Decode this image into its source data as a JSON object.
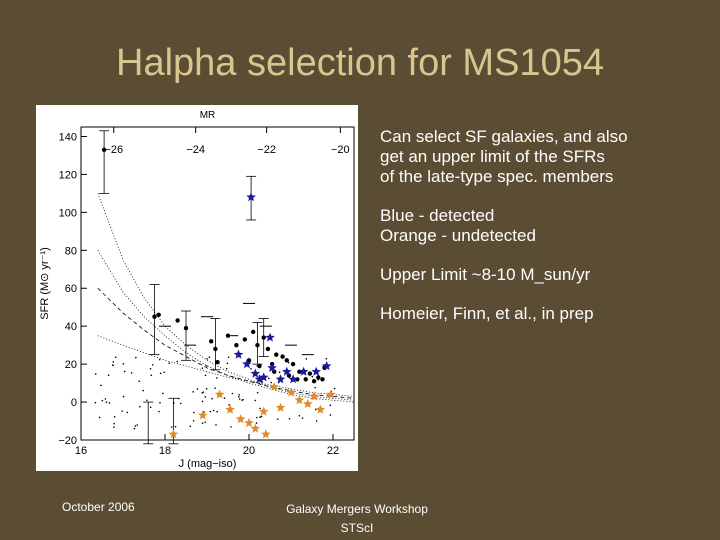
{
  "slide": {
    "title": "Halpha selection for MS1054",
    "bullets": [
      "Can select SF galaxies, and also\nget an upper limit of the SFRs\nof the late-type spec. members",
      "Blue -  detected\nOrange - undetected",
      "Upper Limit ~8-10 M_sun/yr",
      "Homeier, Finn, et al., in prep"
    ],
    "footer_left": "October 2006",
    "footer_center_line1": "Galaxy Mergers Workshop",
    "footer_center_line2": "STScI"
  },
  "colors": {
    "background": "#5b4d33",
    "title": "#d9c58f",
    "detected": "#1a1a9e",
    "undetected": "#e08a2a",
    "other": "#000000"
  },
  "chart_data": {
    "type": "scatter",
    "xlabel": "J (mag−iso)",
    "ylabel": "SFR (M⊙ yr⁻¹)",
    "top_axis_label": "MR",
    "xlim": [
      16,
      22.5
    ],
    "ylim": [
      -20,
      145
    ],
    "x_ticks": [
      "16",
      "18",
      "20",
      "22"
    ],
    "y_ticks": [
      "−20",
      "0",
      "20",
      "40",
      "60",
      "80",
      "100",
      "120",
      "140"
    ],
    "top_ticks": [
      "−26",
      "−24",
      "−22",
      "−20"
    ],
    "series": [
      {
        "marker": "dot",
        "points": [
          [
            16.55,
            133
          ],
          [
            17.75,
            45
          ],
          [
            17.85,
            46
          ],
          [
            18.3,
            43
          ],
          [
            18.5,
            39
          ],
          [
            19.1,
            32
          ],
          [
            19.2,
            28
          ],
          [
            19.25,
            21
          ],
          [
            19.5,
            35
          ],
          [
            19.7,
            30
          ],
          [
            19.9,
            33
          ],
          [
            20.1,
            37
          ],
          [
            20.2,
            30
          ],
          [
            20.35,
            34
          ],
          [
            20.45,
            28
          ],
          [
            20.55,
            20
          ],
          [
            20.65,
            25
          ],
          [
            20.8,
            24
          ],
          [
            20.9,
            22
          ],
          [
            21.05,
            20
          ],
          [
            21.2,
            16
          ],
          [
            21.35,
            12
          ],
          [
            21.45,
            15
          ],
          [
            21.55,
            11
          ],
          [
            21.65,
            13
          ],
          [
            21.75,
            12
          ],
          [
            21.8,
            18
          ],
          [
            20.0,
            22
          ],
          [
            20.25,
            19
          ],
          [
            20.6,
            16
          ],
          [
            20.95,
            14
          ],
          [
            21.15,
            12
          ]
        ]
      },
      {
        "name": "Blue - detected",
        "marker": "star",
        "points": [
          [
            20.05,
            108
          ],
          [
            20.5,
            34
          ],
          [
            19.95,
            20
          ],
          [
            20.15,
            15
          ],
          [
            20.35,
            13
          ],
          [
            20.55,
            18
          ],
          [
            20.75,
            12
          ],
          [
            20.9,
            16
          ],
          [
            21.05,
            12
          ],
          [
            21.3,
            16
          ],
          [
            21.6,
            16
          ],
          [
            21.85,
            19
          ],
          [
            19.75,
            25
          ],
          [
            20.25,
            12
          ]
        ]
      },
      {
        "name": "Orange - undetected",
        "marker": "star",
        "points": [
          [
            18.2,
            -17
          ],
          [
            18.9,
            -7
          ],
          [
            19.3,
            4
          ],
          [
            19.55,
            -4
          ],
          [
            19.8,
            -9
          ],
          [
            20.0,
            -11
          ],
          [
            20.15,
            -14
          ],
          [
            20.35,
            -5
          ],
          [
            20.4,
            -17
          ],
          [
            20.6,
            8
          ],
          [
            20.75,
            -3
          ],
          [
            21.0,
            5
          ],
          [
            21.2,
            1
          ],
          [
            21.4,
            -1
          ],
          [
            21.55,
            3
          ],
          [
            21.7,
            -4
          ],
          [
            21.95,
            4
          ]
        ]
      }
    ],
    "error_bars": [
      [
        16.55,
        133,
        110,
        143
      ],
      [
        17.75,
        45,
        25,
        62
      ],
      [
        18.5,
        39,
        22,
        48
      ],
      [
        19.2,
        28,
        17,
        44
      ],
      [
        20.05,
        108,
        96,
        119
      ],
      [
        20.2,
        30,
        20,
        42
      ],
      [
        20.35,
        34,
        24,
        44
      ],
      [
        17.6,
        -17,
        -22,
        0
      ],
      [
        18.2,
        -17,
        -22,
        2
      ]
    ],
    "upper_limits": [
      [
        18.0,
        40
      ],
      [
        18.6,
        30
      ],
      [
        19.0,
        45
      ],
      [
        19.6,
        35
      ],
      [
        20.0,
        52
      ],
      [
        20.4,
        40
      ],
      [
        21.0,
        30
      ],
      [
        21.4,
        25
      ]
    ],
    "curves": [
      {
        "style": "dotted",
        "points": [
          [
            16.4,
            110
          ],
          [
            17.0,
            75
          ],
          [
            17.5,
            55
          ],
          [
            18.0,
            40
          ],
          [
            18.5,
            30
          ],
          [
            19.0,
            22
          ],
          [
            19.5,
            16
          ],
          [
            20.0,
            12
          ],
          [
            20.5,
            8
          ],
          [
            21.0,
            5
          ],
          [
            21.5,
            3
          ],
          [
            22.0,
            2
          ],
          [
            22.5,
            1
          ]
        ]
      },
      {
        "style": "dotted",
        "points": [
          [
            16.4,
            80
          ],
          [
            17.0,
            58
          ],
          [
            17.5,
            45
          ],
          [
            18.0,
            35
          ],
          [
            18.5,
            26
          ],
          [
            19.0,
            19
          ],
          [
            19.5,
            14
          ],
          [
            20.0,
            10
          ],
          [
            20.5,
            7
          ],
          [
            21.0,
            4
          ],
          [
            21.5,
            2
          ],
          [
            22.0,
            1
          ],
          [
            22.5,
            0
          ]
        ]
      },
      {
        "style": "dashed",
        "points": [
          [
            16.4,
            60
          ],
          [
            17.0,
            47
          ],
          [
            17.5,
            38
          ],
          [
            18.0,
            30
          ],
          [
            18.5,
            24
          ],
          [
            19.0,
            18
          ],
          [
            19.5,
            14
          ],
          [
            20.0,
            11
          ],
          [
            20.5,
            8
          ],
          [
            21.0,
            6
          ],
          [
            21.5,
            4
          ],
          [
            22.0,
            3
          ],
          [
            22.5,
            2
          ]
        ]
      },
      {
        "style": "dotted",
        "points": [
          [
            16.4,
            35
          ],
          [
            17.0,
            30
          ],
          [
            17.5,
            26
          ],
          [
            18.0,
            22
          ],
          [
            18.5,
            19
          ],
          [
            19.0,
            16
          ],
          [
            19.5,
            13
          ],
          [
            20.0,
            11
          ],
          [
            20.5,
            9
          ],
          [
            21.0,
            7
          ],
          [
            21.5,
            5
          ],
          [
            22.0,
            4
          ],
          [
            22.5,
            3
          ]
        ]
      }
    ],
    "background_scatter_count": 120
  }
}
